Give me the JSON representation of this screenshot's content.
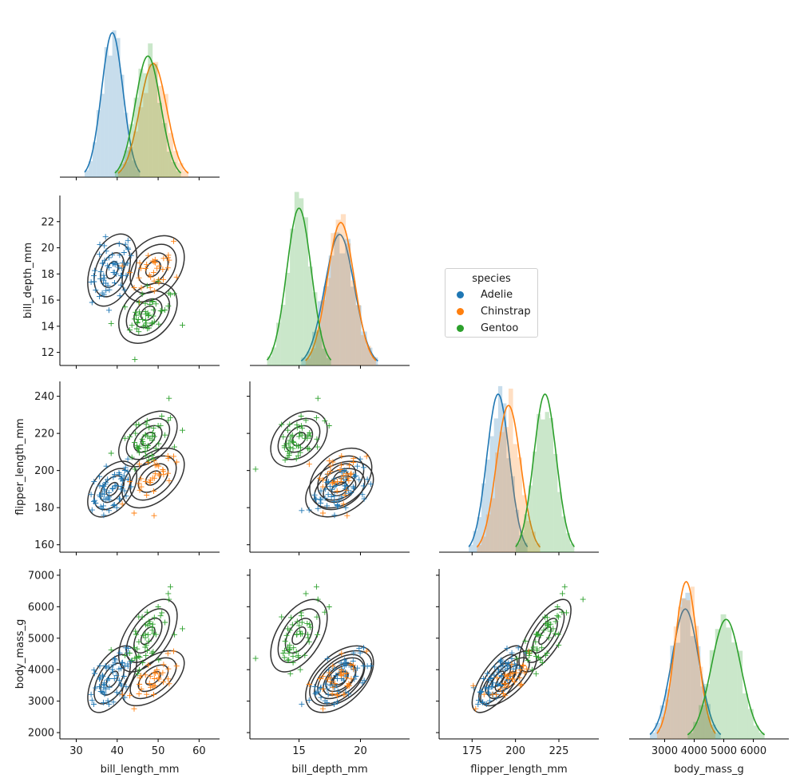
{
  "chart_data": {
    "type": "pairgrid",
    "upper_tri_hidden": true,
    "diagonal": "histogram + kde",
    "lower": "scatter (+ markers) + kde contours",
    "variables": [
      {
        "name": "bill_length_mm",
        "lim": [
          26,
          65
        ],
        "ticks": [
          30,
          40,
          50,
          60
        ],
        "ticklabels": [
          "30",
          "40",
          "50",
          "60"
        ]
      },
      {
        "name": "bill_depth_mm",
        "lim": [
          11,
          24
        ],
        "ticks": [
          12,
          14,
          16,
          18,
          20,
          22
        ],
        "ticklabels": [
          "12",
          "14",
          "16",
          "18",
          "20",
          "22"
        ],
        "xticks": [
          15,
          20
        ],
        "xticklabels": [
          "15",
          "20"
        ]
      },
      {
        "name": "flipper_length_mm",
        "lim": [
          156,
          248
        ],
        "ticks": [
          160,
          180,
          200,
          220,
          240
        ],
        "ticklabels": [
          "160",
          "180",
          "200",
          "220",
          "240"
        ],
        "xticks": [
          175,
          200,
          225
        ],
        "xticklabels": [
          "175",
          "200",
          "225"
        ]
      },
      {
        "name": "body_mass_g",
        "lim": [
          1800,
          7200
        ],
        "ticks": [
          2000,
          3000,
          4000,
          5000,
          6000,
          7000
        ],
        "ticklabels": [
          "2000",
          "3000",
          "4000",
          "5000",
          "6000",
          "7000"
        ],
        "xticks": [
          3000,
          4000,
          5000,
          6000
        ],
        "xticklabels": [
          "3000",
          "4000",
          "5000",
          "6000"
        ]
      }
    ],
    "species": [
      {
        "name": "Adelie",
        "color": "#1f77b4",
        "mean": {
          "bill_length_mm": 38.8,
          "bill_depth_mm": 18.3,
          "flipper_length_mm": 190,
          "body_mass_g": 3700
        },
        "sd": {
          "bill_length_mm": 2.6,
          "bill_depth_mm": 1.2,
          "flipper_length_mm": 6.5,
          "body_mass_g": 460
        }
      },
      {
        "name": "Chinstrap",
        "color": "#ff7f0e",
        "mean": {
          "bill_length_mm": 48.8,
          "bill_depth_mm": 18.4,
          "flipper_length_mm": 196,
          "body_mass_g": 3730
        },
        "sd": {
          "bill_length_mm": 3.3,
          "bill_depth_mm": 1.1,
          "flipper_length_mm": 7,
          "body_mass_g": 380
        }
      },
      {
        "name": "Gentoo",
        "color": "#2ca02c",
        "mean": {
          "bill_length_mm": 47.5,
          "bill_depth_mm": 15.0,
          "flipper_length_mm": 217,
          "body_mass_g": 5080
        },
        "sd": {
          "bill_length_mm": 3.1,
          "bill_depth_mm": 1.0,
          "flipper_length_mm": 6.5,
          "body_mass_g": 500
        }
      }
    ],
    "contour_color": "#333333",
    "legend": {
      "title": "species",
      "placement": "center-right",
      "entries": [
        "Adelie",
        "Chinstrap",
        "Gentoo"
      ]
    }
  }
}
